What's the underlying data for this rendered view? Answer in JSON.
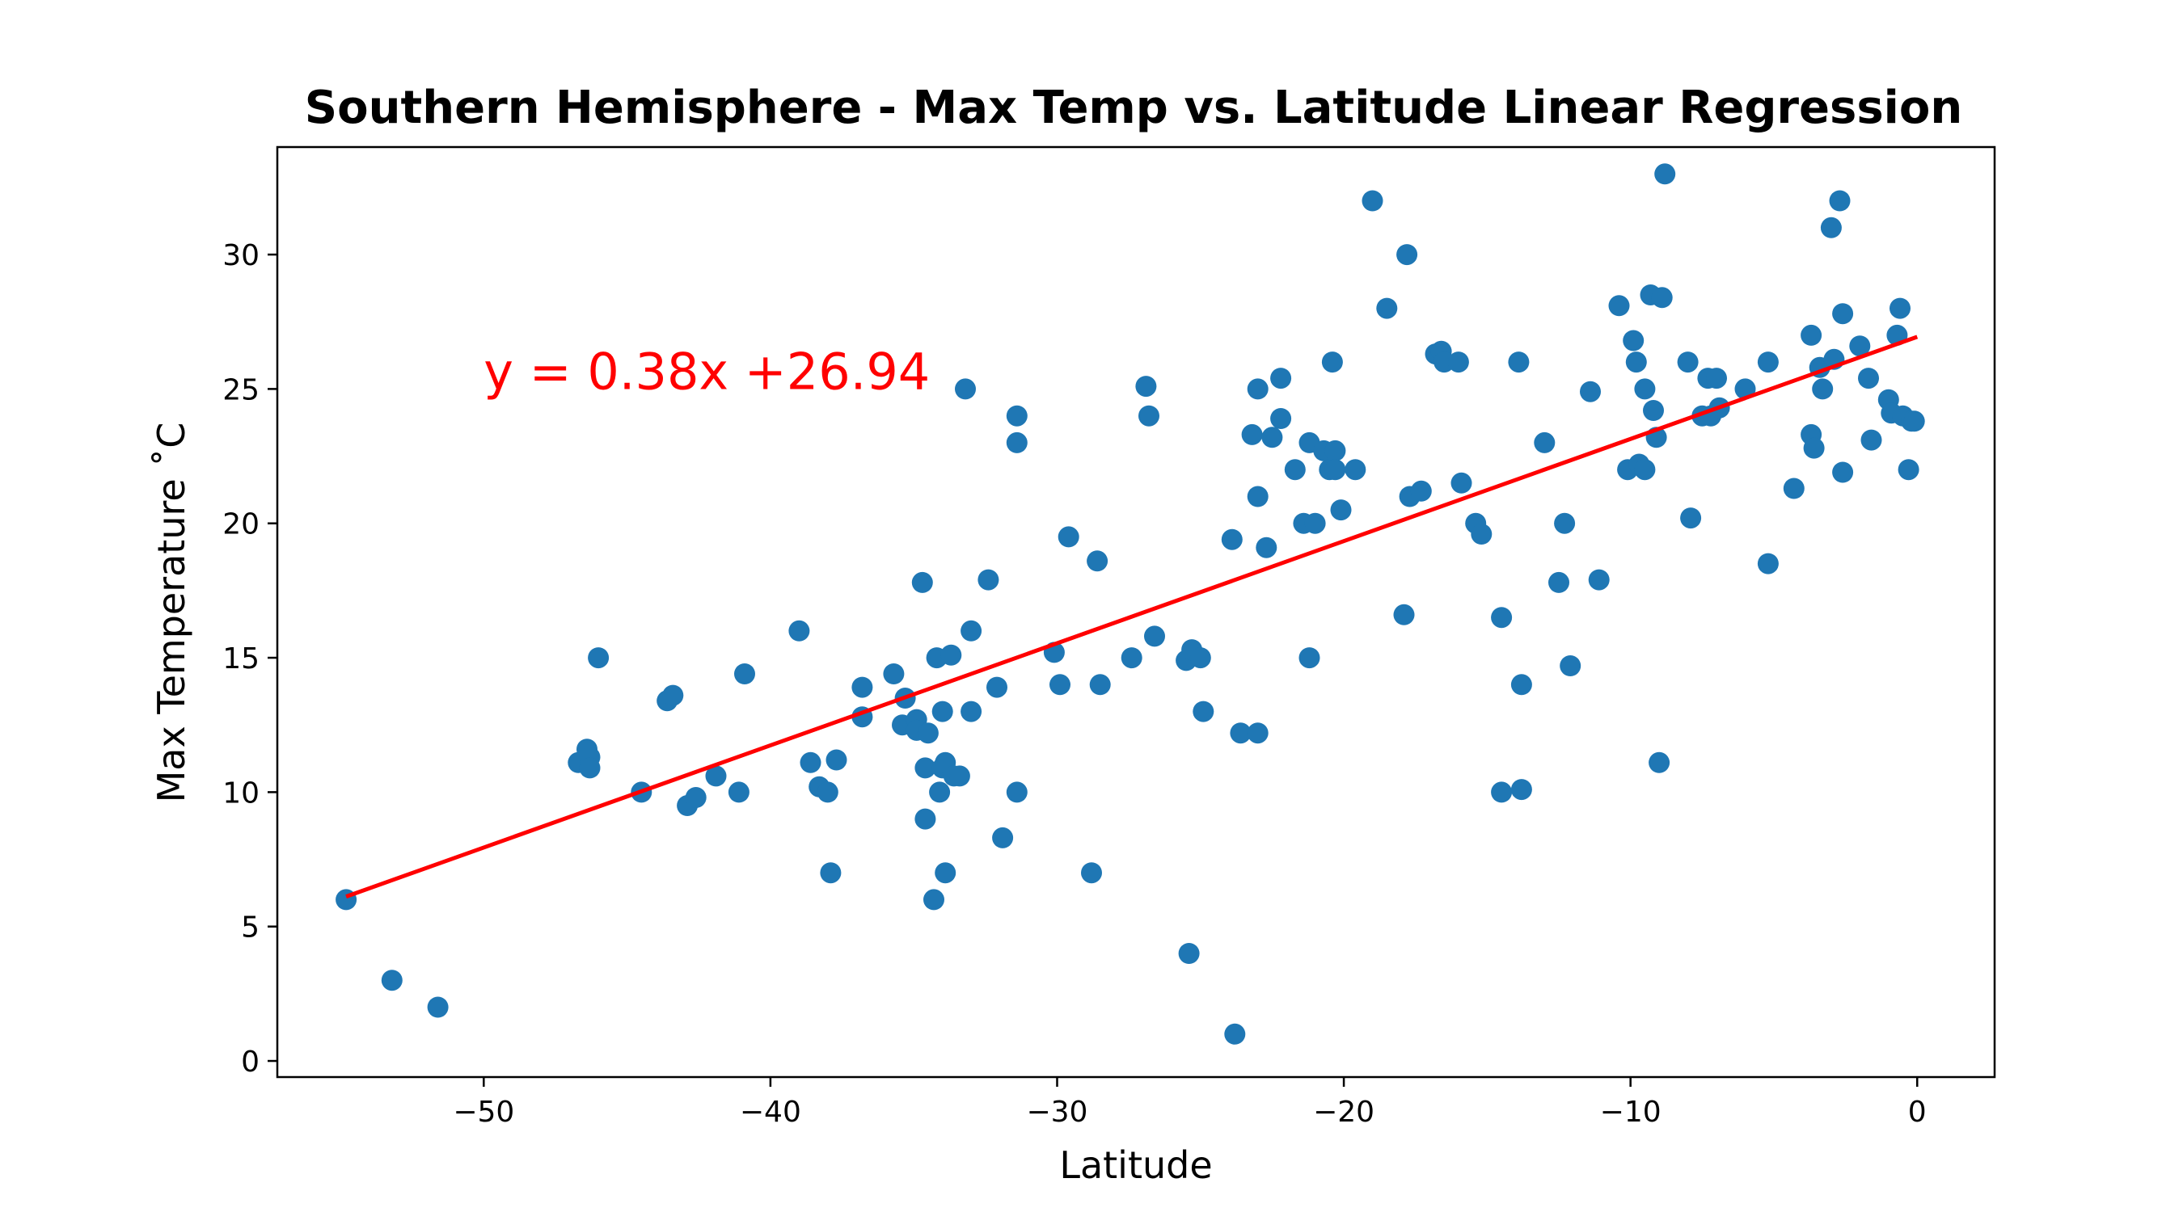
{
  "chart_data": {
    "type": "scatter",
    "title": "Southern Hemisphere - Max Temp vs. Latitude Linear Regression",
    "xlabel": "Latitude",
    "ylabel": "Max Temperature ˚C",
    "xlim": [
      -57.2,
      2.7
    ],
    "ylim": [
      -0.6,
      34.0
    ],
    "xticks": [
      -50,
      -40,
      -30,
      -20,
      -10,
      0
    ],
    "yticks": [
      0,
      5,
      10,
      15,
      20,
      25,
      30
    ],
    "grid": false,
    "point_color": "#1f77b4",
    "line_color": "#ff0000",
    "regression": {
      "slope": 0.38,
      "intercept": 26.94,
      "x_range": [
        -54.8,
        0
      ],
      "equation_text": "y = 0.38x +26.94",
      "annotation_at": [
        -50,
        25
      ]
    },
    "points": [
      [
        -54.8,
        6.0
      ],
      [
        -53.2,
        3.0
      ],
      [
        -51.6,
        2.0
      ],
      [
        -46.7,
        11.1
      ],
      [
        -46.4,
        11.6
      ],
      [
        -46.3,
        11.3
      ],
      [
        -46.3,
        10.9
      ],
      [
        -46.0,
        15.0
      ],
      [
        -44.5,
        10.0
      ],
      [
        -43.6,
        13.4
      ],
      [
        -43.4,
        13.6
      ],
      [
        -42.9,
        9.5
      ],
      [
        -42.6,
        9.8
      ],
      [
        -41.9,
        10.6
      ],
      [
        -41.1,
        10.0
      ],
      [
        -40.9,
        14.4
      ],
      [
        -39.0,
        16.0
      ],
      [
        -38.6,
        11.1
      ],
      [
        -38.3,
        10.2
      ],
      [
        -38.0,
        10.0
      ],
      [
        -37.9,
        7.0
      ],
      [
        -37.7,
        11.2
      ],
      [
        -36.8,
        13.9
      ],
      [
        -36.8,
        12.8
      ],
      [
        -35.7,
        14.4
      ],
      [
        -35.4,
        12.5
      ],
      [
        -35.3,
        13.5
      ],
      [
        -34.9,
        12.7
      ],
      [
        -34.9,
        12.3
      ],
      [
        -34.7,
        17.8
      ],
      [
        -34.6,
        10.9
      ],
      [
        -34.6,
        9.0
      ],
      [
        -34.5,
        12.2
      ],
      [
        -34.3,
        6.0
      ],
      [
        -34.2,
        15.0
      ],
      [
        -34.1,
        10.0
      ],
      [
        -34.0,
        10.9
      ],
      [
        -34.0,
        13.0
      ],
      [
        -33.9,
        7.0
      ],
      [
        -33.9,
        11.1
      ],
      [
        -33.7,
        15.1
      ],
      [
        -33.6,
        10.6
      ],
      [
        -33.4,
        10.6
      ],
      [
        -33.2,
        25.0
      ],
      [
        -33.0,
        16.0
      ],
      [
        -33.0,
        13.0
      ],
      [
        -32.4,
        17.9
      ],
      [
        -32.1,
        13.9
      ],
      [
        -31.9,
        8.3
      ],
      [
        -31.4,
        10.0
      ],
      [
        -31.4,
        23.0
      ],
      [
        -31.4,
        24.0
      ],
      [
        -30.1,
        15.2
      ],
      [
        -29.9,
        14.0
      ],
      [
        -29.6,
        19.5
      ],
      [
        -28.8,
        7.0
      ],
      [
        -28.6,
        18.6
      ],
      [
        -28.5,
        14.0
      ],
      [
        -27.4,
        15.0
      ],
      [
        -26.9,
        25.1
      ],
      [
        -26.8,
        24.0
      ],
      [
        -26.6,
        15.8
      ],
      [
        -25.5,
        14.9
      ],
      [
        -25.4,
        4.0
      ],
      [
        -25.3,
        15.3
      ],
      [
        -25.0,
        15.0
      ],
      [
        -24.9,
        13.0
      ],
      [
        -23.9,
        19.4
      ],
      [
        -23.8,
        1.0
      ],
      [
        -23.6,
        12.2
      ],
      [
        -23.2,
        23.3
      ],
      [
        -23.0,
        12.2
      ],
      [
        -23.0,
        21.0
      ],
      [
        -23.0,
        25.0
      ],
      [
        -22.7,
        19.1
      ],
      [
        -22.5,
        23.2
      ],
      [
        -22.2,
        25.4
      ],
      [
        -22.2,
        23.9
      ],
      [
        -21.7,
        22.0
      ],
      [
        -21.4,
        20.0
      ],
      [
        -21.2,
        23.0
      ],
      [
        -21.2,
        15.0
      ],
      [
        -21.0,
        20.0
      ],
      [
        -20.7,
        22.7
      ],
      [
        -20.5,
        22.0
      ],
      [
        -20.4,
        26.0
      ],
      [
        -20.3,
        22.7
      ],
      [
        -20.3,
        22.0
      ],
      [
        -20.1,
        20.5
      ],
      [
        -19.6,
        22.0
      ],
      [
        -19.0,
        32.0
      ],
      [
        -18.5,
        28.0
      ],
      [
        -17.9,
        16.6
      ],
      [
        -17.8,
        30.0
      ],
      [
        -17.7,
        21.0
      ],
      [
        -17.3,
        21.2
      ],
      [
        -16.8,
        26.3
      ],
      [
        -16.6,
        26.4
      ],
      [
        -16.5,
        26.0
      ],
      [
        -16.0,
        26.0
      ],
      [
        -15.9,
        21.5
      ],
      [
        -15.4,
        20.0
      ],
      [
        -15.2,
        19.6
      ],
      [
        -14.5,
        10.0
      ],
      [
        -14.5,
        16.5
      ],
      [
        -13.9,
        26.0
      ],
      [
        -13.8,
        10.1
      ],
      [
        -13.8,
        14.0
      ],
      [
        -13.0,
        23.0
      ],
      [
        -12.5,
        17.8
      ],
      [
        -12.3,
        20.0
      ],
      [
        -12.1,
        14.7
      ],
      [
        -11.4,
        24.9
      ],
      [
        -11.1,
        17.9
      ],
      [
        -10.4,
        28.1
      ],
      [
        -10.1,
        22.0
      ],
      [
        -9.9,
        26.8
      ],
      [
        -9.8,
        26.0
      ],
      [
        -9.7,
        22.2
      ],
      [
        -9.5,
        25.0
      ],
      [
        -9.5,
        22.0
      ],
      [
        -9.3,
        28.5
      ],
      [
        -9.2,
        24.2
      ],
      [
        -9.1,
        23.2
      ],
      [
        -9.0,
        11.1
      ],
      [
        -8.9,
        28.4
      ],
      [
        -8.8,
        33.0
      ],
      [
        -8.0,
        26.0
      ],
      [
        -7.9,
        20.2
      ],
      [
        -7.5,
        24.0
      ],
      [
        -7.3,
        25.4
      ],
      [
        -7.2,
        24.0
      ],
      [
        -7.0,
        25.4
      ],
      [
        -6.9,
        24.3
      ],
      [
        -6.0,
        25.0
      ],
      [
        -5.2,
        18.5
      ],
      [
        -5.2,
        26.0
      ],
      [
        -4.3,
        21.3
      ],
      [
        -3.7,
        27.0
      ],
      [
        -3.7,
        23.3
      ],
      [
        -3.6,
        22.8
      ],
      [
        -3.4,
        25.8
      ],
      [
        -3.3,
        25.0
      ],
      [
        -3.0,
        31.0
      ],
      [
        -2.9,
        26.1
      ],
      [
        -2.7,
        32.0
      ],
      [
        -2.6,
        21.9
      ],
      [
        -2.6,
        27.8
      ],
      [
        -2.0,
        26.6
      ],
      [
        -1.7,
        25.4
      ],
      [
        -1.6,
        23.1
      ],
      [
        -1.0,
        24.6
      ],
      [
        -0.9,
        24.1
      ],
      [
        -0.7,
        27.0
      ],
      [
        -0.6,
        28.0
      ],
      [
        -0.5,
        24.0
      ],
      [
        -0.3,
        22.0
      ],
      [
        -0.2,
        23.8
      ],
      [
        -0.1,
        23.8
      ]
    ]
  }
}
